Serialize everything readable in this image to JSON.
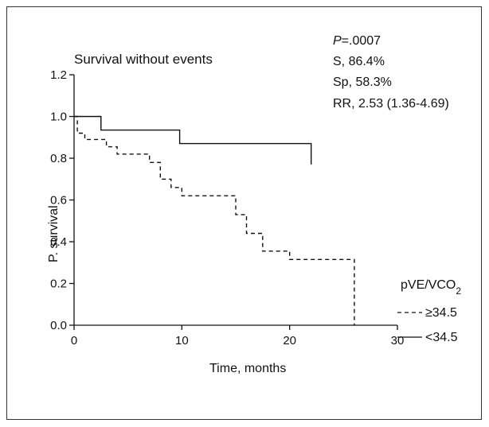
{
  "chart_data": {
    "type": "line",
    "subtype": "kaplan-meier step",
    "title": "Survival without events",
    "xlabel": "Time, months",
    "ylabel": "P. survival",
    "xlim": [
      0,
      30
    ],
    "ylim": [
      0,
      1.2
    ],
    "xticks": [
      "0",
      "10",
      "20",
      "30"
    ],
    "yticks": [
      "0.0",
      "0.2",
      "0.4",
      "0.6",
      "0.8",
      "1.0",
      "1.2"
    ],
    "grid": false,
    "stats": {
      "p_prefix": "P",
      "p_value": "=.0007",
      "sensitivity": "S, 86.4%",
      "specificity": "Sp, 58.3%",
      "rr": "RR, 2.53 (1.36-4.69)"
    },
    "legend": {
      "title": "pVE/VCO",
      "title_sub": "2",
      "position": "bottom-right"
    },
    "series": [
      {
        "name": "<34.5",
        "line_style": "solid",
        "x": [
          0,
          2.5,
          2.5,
          9.8,
          9.8,
          22
        ],
        "y": [
          1.0,
          1.0,
          0.935,
          0.935,
          0.87,
          0.87
        ],
        "end_drop_to": 0.77
      },
      {
        "name": "≥34.5",
        "line_style": "dashed",
        "x": [
          0,
          0.3,
          0.3,
          1.0,
          1.0,
          3.0,
          3.0,
          4.0,
          4.0,
          7.0,
          7.0,
          8.0,
          8.0,
          9.0,
          9.0,
          10.0,
          10.0,
          15.0,
          15.0,
          16.0,
          16.0,
          17.5,
          17.5,
          20.0,
          20.0,
          26.0,
          26.0
        ],
        "y": [
          1.0,
          1.0,
          0.92,
          0.92,
          0.89,
          0.89,
          0.855,
          0.855,
          0.82,
          0.82,
          0.78,
          0.78,
          0.7,
          0.7,
          0.66,
          0.66,
          0.62,
          0.62,
          0.53,
          0.53,
          0.44,
          0.44,
          0.355,
          0.355,
          0.315,
          0.315,
          0.0
        ]
      }
    ]
  }
}
